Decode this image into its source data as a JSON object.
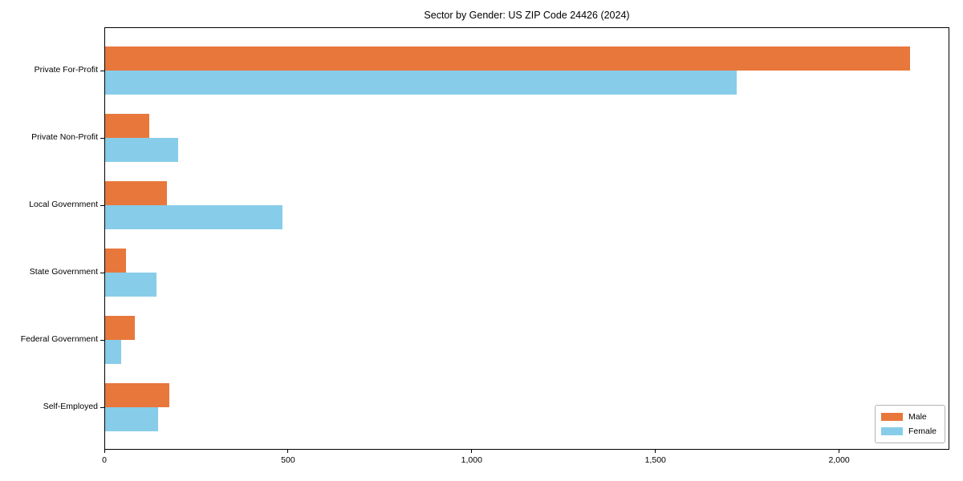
{
  "chart_data": {
    "type": "bar",
    "orientation": "horizontal",
    "title": "Sector by Gender: US ZIP Code 24426 (2024)",
    "categories": [
      "Private For-Profit",
      "Private Non-Profit",
      "Local Government",
      "State Government",
      "Federal Government",
      "Self-Employed"
    ],
    "series": [
      {
        "name": "Male",
        "color": "#E8773C",
        "values": [
          2190,
          120,
          168,
          57,
          80,
          175
        ]
      },
      {
        "name": "Female",
        "color": "#87CDE9",
        "values": [
          1720,
          198,
          483,
          140,
          44,
          144
        ]
      }
    ],
    "xlabel": "",
    "ylabel": "",
    "xlim": [
      0,
      2300
    ],
    "xticks": [
      0,
      500,
      1000,
      1500,
      2000
    ],
    "xtick_labels": [
      "0",
      "500",
      "1,000",
      "1,500",
      "2,000"
    ],
    "grid": false,
    "legend": {
      "position": "lower right",
      "entries": [
        "Male",
        "Female"
      ]
    }
  }
}
